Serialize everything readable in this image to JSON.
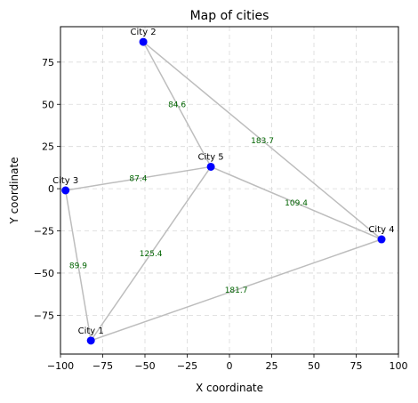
{
  "chart_data": {
    "type": "scatter",
    "title": "Map of cities",
    "xlabel": "X coordinate",
    "ylabel": "Y coordinate",
    "xlim": [
      -100,
      100
    ],
    "ylim": [
      -98,
      96
    ],
    "xticks": [
      -100,
      -75,
      -50,
      -25,
      0,
      25,
      50,
      75,
      100
    ],
    "yticks": [
      -75,
      -50,
      -25,
      0,
      25,
      50,
      75
    ],
    "grid": true,
    "cities": [
      {
        "name": "City 1",
        "x": -82,
        "y": -90
      },
      {
        "name": "City 2",
        "x": -51,
        "y": 87
      },
      {
        "name": "City 3",
        "x": -97,
        "y": -1
      },
      {
        "name": "City 4",
        "x": 90,
        "y": -30
      },
      {
        "name": "City 5",
        "x": -11,
        "y": 13
      }
    ],
    "edges": [
      {
        "from": 1,
        "to": 3,
        "distance": "89.9"
      },
      {
        "from": 1,
        "to": 5,
        "distance": "125.4"
      },
      {
        "from": 1,
        "to": 4,
        "distance": "181.7"
      },
      {
        "from": 2,
        "to": 5,
        "distance": "84.6"
      },
      {
        "from": 2,
        "to": 4,
        "distance": "183.7"
      },
      {
        "from": 3,
        "to": 5,
        "distance": "87.4"
      },
      {
        "from": 5,
        "to": 4,
        "distance": "109.4"
      }
    ],
    "colors": {
      "point": "#0000ff",
      "edge": "#bdbdbd",
      "distance_label": "#006400",
      "grid": "#d9d9d9"
    }
  }
}
